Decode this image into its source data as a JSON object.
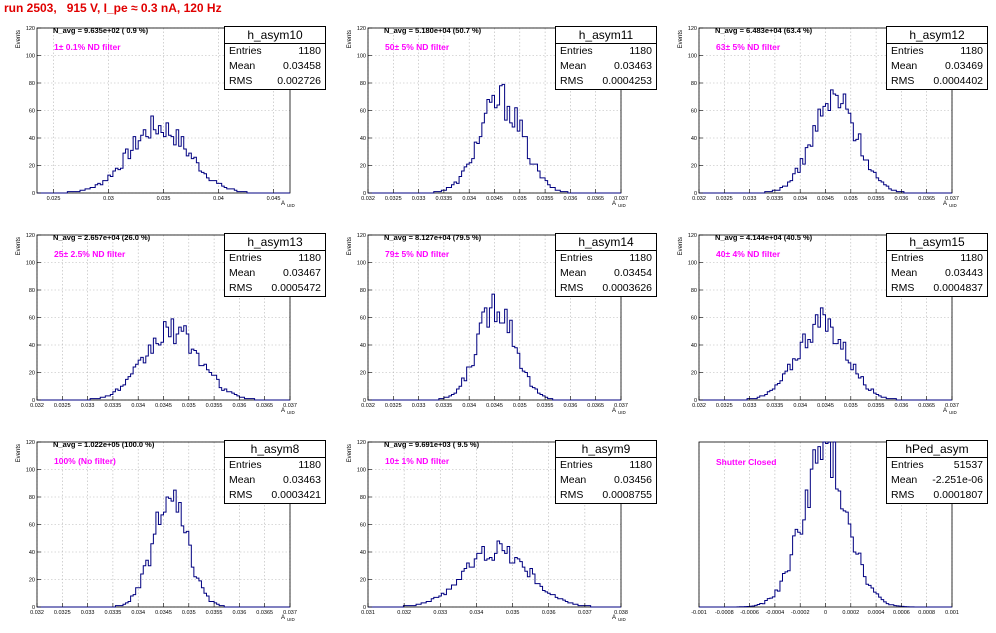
{
  "title": "run 2503,   915 V, I_pe ≈ 0.3 nA, 120 Hz",
  "colors": {
    "title": "#e00000",
    "histogram": "#000080",
    "filter_text": "#ff00ff",
    "grid": "#b4b4b4"
  },
  "chart_data": [
    {
      "type": "histogram",
      "name": "h_asym10",
      "ylabel": "Events",
      "xlabel": "A",
      "xlabel_sub": "UID",
      "n_avg": "N_avg = 9.635e+02 ( 0.9 %)",
      "filter": "1± 0.1% ND filter",
      "entries": "1180",
      "mean": "0.03458",
      "rms": "0.002726",
      "xlim": [
        0.0235,
        0.0465
      ],
      "ylim": [
        0,
        120
      ],
      "xticks": [
        0.025,
        0.03,
        0.035,
        0.04,
        0.045
      ],
      "xtick_labels": [
        "0.025",
        "0.03",
        "0.035",
        "0.04",
        "0.045"
      ],
      "yticks": [
        0,
        20,
        40,
        60,
        80,
        100,
        120
      ],
      "gen": {
        "mu": 0.03458,
        "sigma": 0.002726,
        "peak": 48
      }
    },
    {
      "type": "histogram",
      "name": "h_asym11",
      "ylabel": "Events",
      "xlabel": "A",
      "xlabel_sub": "UID",
      "n_avg": "N_avg = 5.180e+04 (50.7 %)",
      "filter": "50± 5% ND filter",
      "entries": "1180",
      "mean": "0.03463",
      "rms": "0.0004253",
      "xlim": [
        0.032,
        0.037
      ],
      "ylim": [
        0,
        120
      ],
      "xticks": [
        0.032,
        0.0325,
        0.033,
        0.0335,
        0.034,
        0.0345,
        0.035,
        0.0355,
        0.036,
        0.0365,
        0.037
      ],
      "xtick_labels": [
        "0.032",
        "0.0325",
        "0.033",
        "0.0335",
        "0.034",
        "0.0345",
        "0.035",
        "0.0355",
        "0.036",
        "0.0365",
        "0.037"
      ],
      "yticks": [
        0,
        20,
        40,
        60,
        80,
        100,
        120
      ],
      "gen": {
        "mu": 0.03463,
        "sigma": 0.0004253,
        "peak": 68
      }
    },
    {
      "type": "histogram",
      "name": "h_asym12",
      "ylabel": "Events",
      "xlabel": "A",
      "xlabel_sub": "UID",
      "n_avg": "N_avg = 6.483e+04 (63.4 %)",
      "filter": "63± 5% ND filter",
      "entries": "1180",
      "mean": "0.03469",
      "rms": "0.0004402",
      "xlim": [
        0.032,
        0.037
      ],
      "ylim": [
        0,
        120
      ],
      "xticks": [
        0.032,
        0.0325,
        0.033,
        0.0335,
        0.034,
        0.0345,
        0.035,
        0.0355,
        0.036,
        0.0365,
        0.037
      ],
      "xtick_labels": [
        "0.032",
        "0.0325",
        "0.033",
        "0.0335",
        "0.034",
        "0.0345",
        "0.035",
        "0.0355",
        "0.036",
        "0.0365",
        "0.037"
      ],
      "yticks": [
        0,
        20,
        40,
        60,
        80,
        100,
        120
      ],
      "gen": {
        "mu": 0.03469,
        "sigma": 0.0004402,
        "peak": 68
      }
    },
    {
      "type": "histogram",
      "name": "h_asym13",
      "ylabel": "Events",
      "xlabel": "A",
      "xlabel_sub": "UID",
      "n_avg": "N_avg = 2.657e+04 (26.0 %)",
      "filter": "25± 2.5% ND filter",
      "entries": "1180",
      "mean": "0.03467",
      "rms": "0.0005472",
      "xlim": [
        0.032,
        0.037
      ],
      "ylim": [
        0,
        120
      ],
      "xticks": [
        0.032,
        0.0325,
        0.033,
        0.0335,
        0.034,
        0.0345,
        0.035,
        0.0355,
        0.036,
        0.0365,
        0.037
      ],
      "xtick_labels": [
        "0.032",
        "0.0325",
        "0.033",
        "0.0335",
        "0.034",
        "0.0345",
        "0.035",
        "0.0355",
        "0.036",
        "0.0365",
        "0.037"
      ],
      "yticks": [
        0,
        20,
        40,
        60,
        80,
        100,
        120
      ],
      "gen": {
        "mu": 0.03467,
        "sigma": 0.0005472,
        "peak": 50
      }
    },
    {
      "type": "histogram",
      "name": "h_asym14",
      "ylabel": "Events",
      "xlabel": "A",
      "xlabel_sub": "UID",
      "n_avg": "N_avg = 8.127e+04 (79.5 %)",
      "filter": "79± 5% ND filter",
      "entries": "1180",
      "mean": "0.03454",
      "rms": "0.0003626",
      "xlim": [
        0.032,
        0.037
      ],
      "ylim": [
        0,
        120
      ],
      "xticks": [
        0.032,
        0.0325,
        0.033,
        0.0335,
        0.034,
        0.0345,
        0.035,
        0.0355,
        0.036,
        0.0365,
        0.037
      ],
      "xtick_labels": [
        "0.032",
        "0.0325",
        "0.033",
        "0.0335",
        "0.034",
        "0.0345",
        "0.035",
        "0.0355",
        "0.036",
        "0.0365",
        "0.037"
      ],
      "yticks": [
        0,
        20,
        40,
        60,
        80,
        100,
        120
      ],
      "gen": {
        "mu": 0.03454,
        "sigma": 0.0003626,
        "peak": 71
      }
    },
    {
      "type": "histogram",
      "name": "h_asym15",
      "ylabel": "Events",
      "xlabel": "A",
      "xlabel_sub": "UID",
      "n_avg": "N_avg = 4.144e+04 (40.5 %)",
      "filter": "40± 4% ND filter",
      "entries": "1180",
      "mean": "0.03443",
      "rms": "0.0004837",
      "xlim": [
        0.032,
        0.037
      ],
      "ylim": [
        0,
        120
      ],
      "xticks": [
        0.032,
        0.0325,
        0.033,
        0.0335,
        0.034,
        0.0345,
        0.035,
        0.0355,
        0.036,
        0.0365,
        0.037
      ],
      "xtick_labels": [
        "0.032",
        "0.0325",
        "0.033",
        "0.0335",
        "0.034",
        "0.0345",
        "0.035",
        "0.0355",
        "0.036",
        "0.0365",
        "0.037"
      ],
      "yticks": [
        0,
        20,
        40,
        60,
        80,
        100,
        120
      ],
      "gen": {
        "mu": 0.03443,
        "sigma": 0.0004837,
        "peak": 56
      }
    },
    {
      "type": "histogram",
      "name": "h_asym8",
      "ylabel": "Events",
      "xlabel": "A",
      "xlabel_sub": "UID",
      "n_avg": "N_avg = 1.022e+05 (100.0 %)",
      "filter": "100% (No filter)",
      "entries": "1180",
      "mean": "0.03463",
      "rms": "0.0003421",
      "xlim": [
        0.032,
        0.037
      ],
      "ylim": [
        0,
        120
      ],
      "xticks": [
        0.032,
        0.0325,
        0.033,
        0.0335,
        0.034,
        0.0345,
        0.035,
        0.0355,
        0.036,
        0.0365,
        0.037
      ],
      "xtick_labels": [
        "0.032",
        "0.0325",
        "0.033",
        "0.0335",
        "0.034",
        "0.0345",
        "0.035",
        "0.0355",
        "0.036",
        "0.0365",
        "0.037"
      ],
      "yticks": [
        0,
        20,
        40,
        60,
        80,
        100,
        120
      ],
      "gen": {
        "mu": 0.03463,
        "sigma": 0.0003421,
        "peak": 76
      }
    },
    {
      "type": "histogram",
      "name": "h_asym9",
      "ylabel": "Events",
      "xlabel": "A",
      "xlabel_sub": "UID",
      "n_avg": "N_avg = 9.691e+03 ( 9.5 %)",
      "filter": "10± 1% ND filter",
      "entries": "1180",
      "mean": "0.03456",
      "rms": "0.0008755",
      "xlim": [
        0.031,
        0.038
      ],
      "ylim": [
        0,
        120
      ],
      "xticks": [
        0.031,
        0.032,
        0.033,
        0.034,
        0.035,
        0.036,
        0.037,
        0.038
      ],
      "xtick_labels": [
        "0.031",
        "0.032",
        "0.033",
        "0.034",
        "0.035",
        "0.036",
        "0.037",
        "0.038"
      ],
      "yticks": [
        0,
        20,
        40,
        60,
        80,
        100,
        120
      ],
      "gen": {
        "mu": 0.03456,
        "sigma": 0.0008755,
        "peak": 42
      }
    },
    {
      "type": "histogram",
      "name": "hPed_asym",
      "ylabel": "",
      "xlabel": "",
      "xlabel_sub": "",
      "n_avg": "",
      "filter": "Shutter Closed",
      "entries": "51537",
      "mean": "-2.251e-06",
      "rms": "0.0001807",
      "xlim": [
        -0.001,
        0.001
      ],
      "ylim": [
        0,
        2550
      ],
      "xticks": [
        -0.001,
        -0.0008,
        -0.0006,
        -0.0004,
        -0.0002,
        0,
        0.0002,
        0.0004,
        0.0006,
        0.0008,
        0.001
      ],
      "xtick_labels": [
        "-0.001",
        "-0.0008",
        "-0.0006",
        "-0.0004",
        "-0.0002",
        "0",
        "0.0002",
        "0.0004",
        "0.0006",
        "0.0008",
        "0.001"
      ],
      "yticks": [],
      "gen": {
        "mu": -2.3e-06,
        "sigma": 0.0001807,
        "peak": 2380
      }
    }
  ]
}
